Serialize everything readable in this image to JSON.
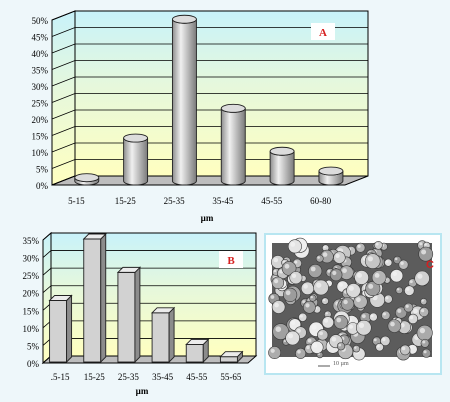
{
  "chart_data": [
    {
      "type": "bar",
      "title": "",
      "panel_label": "A",
      "xlabel": "µm",
      "ylabel": "",
      "categories": [
        "5-15",
        "15-25",
        "25-35",
        "35-45",
        "45-55",
        "60-80"
      ],
      "values": [
        1,
        13,
        49,
        22,
        9,
        3
      ],
      "ylim": [
        0,
        50
      ],
      "yticks": [
        "0%",
        "5%",
        "10%",
        "15%",
        "20%",
        "25%",
        "30%",
        "35%",
        "40%",
        "45%",
        "50%"
      ],
      "bar_style": "3d-cylinder",
      "grid": true
    },
    {
      "type": "bar",
      "title": "",
      "panel_label": "B",
      "xlabel": "µm",
      "ylabel": "",
      "categories": [
        ".5-15",
        "15-25",
        "25-35",
        "35-45",
        "45-55",
        "55-65"
      ],
      "values": [
        17.5,
        35,
        25.5,
        14,
        5,
        1.5
      ],
      "ylim": [
        0,
        35
      ],
      "yticks": [
        "0%",
        "5%",
        "10%",
        "15%",
        "20%",
        "25%",
        "30%",
        "35%"
      ],
      "bar_style": "3d-box",
      "grid": true
    }
  ],
  "micrograph": {
    "label": "C",
    "scale_bar_text": "10 µm"
  },
  "colors": {
    "label_red": "#d62020",
    "grid": "#000000",
    "wall_top": "#c8f2fa",
    "wall_bottom": "#ffffc0",
    "bar_light": "#e4e4e4",
    "bar_dark": "#8c8c8c"
  }
}
